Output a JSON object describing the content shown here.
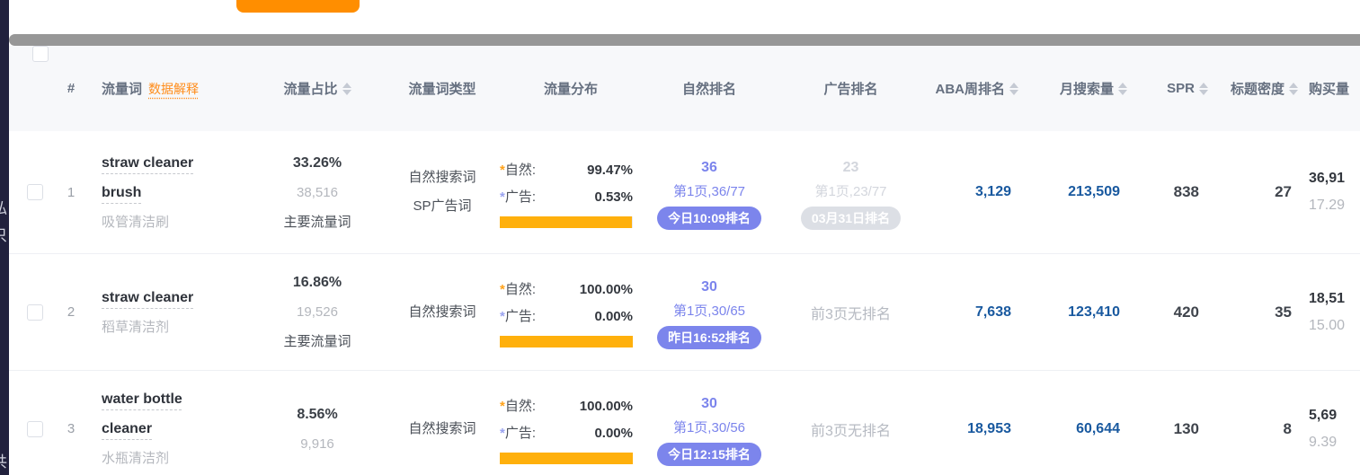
{
  "misc": {
    "asterisk": "*"
  },
  "left_rail": {
    "fragments": [
      "私",
      "只",
      "共"
    ]
  },
  "toolbar": {
    "orange_button_label": ""
  },
  "table": {
    "columns": [
      {
        "label": "#"
      },
      {
        "label": "流量词",
        "link": "数据解释"
      },
      {
        "label": "流量占比",
        "sortable": true
      },
      {
        "label": "流量词类型"
      },
      {
        "label": "流量分布"
      },
      {
        "label": "自然排名"
      },
      {
        "label": "广告排名"
      },
      {
        "label": "ABA周排名",
        "sortable": true
      },
      {
        "label": "月搜索量",
        "sortable": true
      },
      {
        "label": "SPR",
        "sortable": true
      },
      {
        "label": "标题密度",
        "sortable": true
      },
      {
        "label": "购买量"
      }
    ],
    "rows": [
      {
        "num": "1",
        "keyword": "straw cleaner brush",
        "translation": "吸管清洁刷",
        "share_pct": "33.26%",
        "share_count": "38,516",
        "share_tag": "主要流量词",
        "types": [
          "自然搜索词",
          "SP广告词"
        ],
        "dist": {
          "natural_label": "自然:",
          "natural_pct": "99.47%",
          "ad_label": "广告:",
          "ad_pct": "0.53%",
          "bar_pct": 99.47
        },
        "natural_rank": {
          "rank": "36",
          "page": "第1页,36/77",
          "badge": "今日10:09排名"
        },
        "ad_rank": {
          "rank": "23",
          "page": "第1页,23/77",
          "badge": "03月31日排名"
        },
        "aba": "3,129",
        "monthly": "213,509",
        "spr": "838",
        "title_density": "27",
        "purchase": "36,91",
        "purchase_rate": "17.29"
      },
      {
        "num": "2",
        "keyword": "straw cleaner",
        "translation": "稻草清洁剂",
        "share_pct": "16.86%",
        "share_count": "19,526",
        "share_tag": "主要流量词",
        "types": [
          "自然搜索词"
        ],
        "dist": {
          "natural_label": "自然:",
          "natural_pct": "100.00%",
          "ad_label": "广告:",
          "ad_pct": "0.00%",
          "bar_pct": 100
        },
        "natural_rank": {
          "rank": "30",
          "page": "第1页,30/65",
          "badge": "昨日16:52排名"
        },
        "ad_rank": {
          "none": "前3页无排名"
        },
        "aba": "7,638",
        "monthly": "123,410",
        "spr": "420",
        "title_density": "35",
        "purchase": "18,51",
        "purchase_rate": "15.00"
      },
      {
        "num": "3",
        "keyword": "water bottle cleaner",
        "translation": "水瓶清洁剂",
        "share_pct": "8.56%",
        "share_count": "9,916",
        "share_tag": "",
        "types": [
          "自然搜索词"
        ],
        "dist": {
          "natural_label": "自然:",
          "natural_pct": "100.00%",
          "ad_label": "广告:",
          "ad_pct": "0.00%",
          "bar_pct": 100
        },
        "natural_rank": {
          "rank": "30",
          "page": "第1页,30/56",
          "badge": "今日12:15排名"
        },
        "ad_rank": {
          "none": "前3页无排名"
        },
        "aba": "18,953",
        "monthly": "60,644",
        "spr": "130",
        "title_density": "8",
        "purchase": "5,69",
        "purchase_rate": "9.39"
      }
    ]
  }
}
